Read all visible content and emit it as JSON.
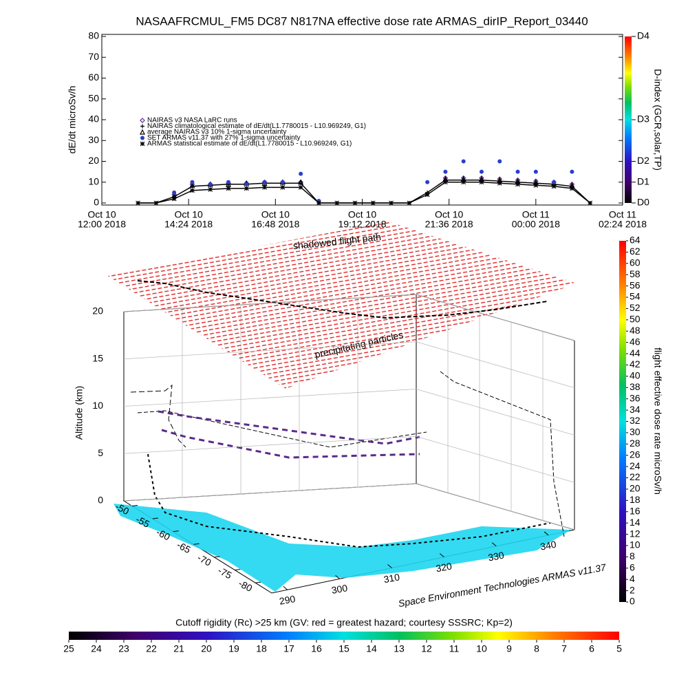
{
  "chart_data": [
    {
      "type": "scatter",
      "title": "NASAAFRCMUL_FM5 DC87 N817NA effective dose rate ARMAS_dirIP_Report_03440",
      "ylabel": "dE/dt microSv/h",
      "ylim": [
        0,
        80
      ],
      "yticks": [
        0,
        10,
        20,
        30,
        40,
        50,
        60,
        70,
        80
      ],
      "xlim": [
        "2018-10-10T12:00",
        "2018-10-11T02:24"
      ],
      "xticks": [
        {
          "value": "2018-10-10T12:00",
          "label": [
            "Oct 10",
            "12:00 2018"
          ]
        },
        {
          "value": "2018-10-10T14:24",
          "label": [
            "Oct 10",
            "14:24 2018"
          ]
        },
        {
          "value": "2018-10-10T16:48",
          "label": [
            "Oct 10",
            "16:48 2018"
          ]
        },
        {
          "value": "2018-10-10T19:12",
          "label": [
            "Oct 10",
            "19:12 2018"
          ]
        },
        {
          "value": "2018-10-10T21:36",
          "label": [
            "Oct 10",
            "21:36 2018"
          ]
        },
        {
          "value": "2018-10-11T00:00",
          "label": [
            "Oct 11",
            "00:00 2018"
          ]
        },
        {
          "value": "2018-10-11T02:24",
          "label": [
            "Oct 11",
            "02:24 2018"
          ]
        }
      ],
      "x": [
        "2018-10-10T13:00",
        "2018-10-10T13:30",
        "2018-10-10T14:00",
        "2018-10-10T14:30",
        "2018-10-10T15:00",
        "2018-10-10T15:30",
        "2018-10-10T16:00",
        "2018-10-10T16:30",
        "2018-10-10T17:00",
        "2018-10-10T17:30",
        "2018-10-10T18:00",
        "2018-10-10T18:30",
        "2018-10-10T19:00",
        "2018-10-10T19:30",
        "2018-10-10T20:00",
        "2018-10-10T20:30",
        "2018-10-10T21:00",
        "2018-10-10T21:30",
        "2018-10-10T22:00",
        "2018-10-10T22:30",
        "2018-10-10T23:00",
        "2018-10-10T23:30",
        "2018-10-11T00:00",
        "2018-10-11T00:30",
        "2018-10-11T01:00",
        "2018-10-11T01:30"
      ],
      "series": [
        {
          "name": "NAIRAS v3 NASA LaRC runs",
          "marker": "diamond",
          "color": "#5a2a8a",
          "line": false,
          "values": [
            null,
            null,
            4,
            9,
            9,
            9.5,
            9.5,
            10,
            10,
            10,
            null,
            null,
            null,
            null,
            null,
            null,
            null,
            12,
            12,
            12,
            11.5,
            11,
            10.5,
            10,
            9,
            null
          ]
        },
        {
          "name": "NAIRAS climatological estimate of dE/dt(L1.7780015 - L10.969249, G1)",
          "marker": "plus",
          "color": "#000000",
          "line": true,
          "values": [
            0,
            0,
            3,
            8,
            8.5,
            9,
            9,
            9.5,
            9.5,
            9.5,
            0,
            0,
            0,
            0,
            0,
            0,
            5,
            11,
            11,
            11,
            10.5,
            10,
            9.5,
            9,
            8,
            0
          ]
        },
        {
          "name": "average NAIRAS v3 10% 1-sigma uncertainty",
          "marker": "triangle",
          "color": "#000000",
          "line": false,
          "values": [
            null,
            null,
            3.5,
            8.5,
            9,
            9,
            9.5,
            9.5,
            10,
            10,
            null,
            null,
            null,
            null,
            null,
            null,
            null,
            11.5,
            11.5,
            11.5,
            11,
            10.5,
            10,
            9.5,
            8.5,
            null
          ]
        },
        {
          "name": "SET ARMAS v11.37 with 27% 1-sigma uncertainty",
          "marker": "circle",
          "color": "#2a3fc8",
          "line": false,
          "values": [
            null,
            null,
            5,
            10,
            9,
            10,
            9,
            10,
            10,
            14,
            1,
            null,
            null,
            null,
            null,
            null,
            10,
            15,
            20,
            15,
            20,
            15,
            15,
            10,
            15,
            null
          ]
        },
        {
          "name": "ARMAS statistical estimate of dE/dt(L1.7780015 - L10.969249, G1)",
          "marker": "star",
          "color": "#000000",
          "line": true,
          "values": [
            0,
            0,
            2,
            6,
            6.5,
            7,
            7,
            7.5,
            7.5,
            7.5,
            0,
            0,
            0,
            0,
            0,
            0,
            4,
            10,
            10,
            10,
            9.5,
            9,
            8.5,
            8,
            7,
            0
          ]
        }
      ],
      "y2label": "D-index (GCR,solar,TP)",
      "y2lim": [
        0,
        80
      ],
      "y2ticks": [
        {
          "value": 0,
          "label": "D0"
        },
        {
          "value": 10,
          "label": "D1"
        },
        {
          "value": 20,
          "label": "D2"
        },
        {
          "value": 40,
          "label": "D3"
        },
        {
          "value": 80,
          "label": "D4"
        }
      ]
    },
    {
      "type": "surface3d",
      "annotations": [
        "shadowed flight path",
        "precipitating particles"
      ],
      "zlabel": "Altitude (km)",
      "zlim": [
        0,
        20
      ],
      "zticks": [
        0,
        5,
        10,
        15,
        20
      ],
      "ylim": [
        -48,
        -84
      ],
      "yticks": [
        -50,
        -55,
        -60,
        -65,
        -70,
        -75,
        -80
      ],
      "xlim": [
        287,
        345
      ],
      "xticks": [
        290,
        300,
        310,
        320,
        330,
        340
      ],
      "credit": "Space Environment Technologies ARMAS v11.37",
      "colorbar": {
        "label": "flight effective dose rate microSv/h",
        "lim": [
          0,
          64
        ],
        "ticks": [
          0,
          2,
          4,
          6,
          8,
          10,
          12,
          14,
          16,
          18,
          20,
          22,
          24,
          26,
          28,
          30,
          32,
          34,
          36,
          38,
          40,
          42,
          44,
          46,
          48,
          50,
          52,
          54,
          56,
          58,
          60,
          62,
          64
        ]
      },
      "colorbar2": {
        "label": "Cutoff rigidity (Rc) >25 km (GV: red = greatest hazard; courtesy SSSRC; Kp=2)",
        "lim": [
          25,
          5
        ],
        "ticks": [
          25,
          24,
          23,
          22,
          21,
          20,
          19,
          18,
          17,
          16,
          15,
          14,
          13,
          12,
          11,
          10,
          9,
          8,
          7,
          6,
          5
        ]
      }
    }
  ]
}
